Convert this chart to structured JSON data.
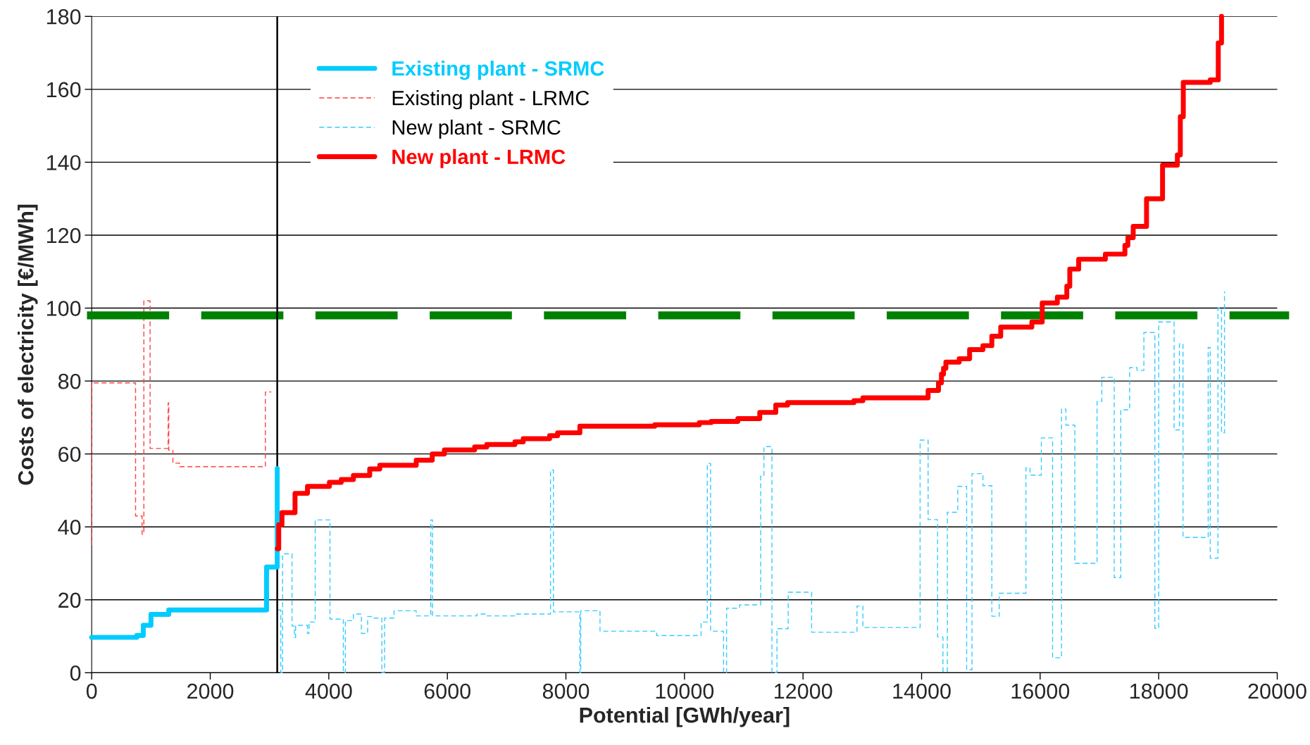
{
  "chart_data": {
    "type": "step",
    "xlabel": "Potential [GWh/year]",
    "ylabel": "Costs of electricity [€/MWh]",
    "xlim": [
      0,
      20000
    ],
    "xticks": [
      0,
      2000,
      4000,
      6000,
      8000,
      10000,
      12000,
      14000,
      16000,
      18000,
      20000
    ],
    "ylim": [
      0,
      180
    ],
    "yticks": [
      0,
      20,
      40,
      60,
      80,
      100,
      120,
      140,
      160,
      180
    ],
    "grid": "y",
    "legend": "top left",
    "marker": "none",
    "ref_lines": [
      {
        "axis": "y",
        "value": 98,
        "label": null,
        "color": "#008000",
        "line_style": "dashed"
      },
      {
        "axis": "x",
        "value": 3130,
        "label": null,
        "color": "#000000",
        "line_style": "solid"
      }
    ],
    "series": [
      {
        "name": "Existing plant - SRMC",
        "color": "#00ccff",
        "line_style": "solid",
        "x": [
          0,
          760,
          870,
          1000,
          1300,
          2950,
          3130,
          3130
        ],
        "values": [
          9.7,
          10.2,
          13,
          16,
          17.2,
          29,
          29,
          56
        ]
      },
      {
        "name": "Existing plant - LRMC",
        "color": "#ff4040",
        "line_style": "dashed",
        "x": [
          0,
          0,
          740,
          850,
          880,
          985,
          1290,
          1300,
          1370,
          1480,
          2930,
          3030
        ],
        "values": [
          35,
          79.5,
          43,
          38,
          102,
          61.5,
          74,
          61,
          57.5,
          56.5,
          77,
          77
        ]
      },
      {
        "name": "New plant - SRMC",
        "color": "#33ccff",
        "line_style": "dashed",
        "x": [
          3140,
          3190,
          3220,
          3380,
          3420,
          3440,
          3640,
          3665,
          3770,
          4020,
          4245,
          4280,
          4415,
          4550,
          4655,
          4760,
          4895,
          4940,
          5100,
          5475,
          5720,
          5750,
          6500,
          6665,
          7140,
          7740,
          7790,
          8235,
          8250,
          8575,
          9530,
          10280,
          10385,
          10440,
          10660,
          10710,
          10930,
          11285,
          11340,
          11475,
          11560,
          11750,
          12145,
          12910,
          13010,
          13975,
          14110,
          14270,
          14360,
          14435,
          14610,
          14760,
          14850,
          15035,
          15185,
          15310,
          15760,
          15830,
          16020,
          16210,
          16360,
          16435,
          16585,
          16960,
          17040,
          17250,
          17360,
          17510,
          17635,
          17750,
          17935,
          18000,
          18260,
          18350,
          18410,
          18835,
          18870,
          19000,
          19060,
          19110
        ],
        "values": [
          17.2,
          0,
          32.6,
          12.8,
          9.7,
          13,
          10.8,
          13.9,
          41.9,
          14.7,
          0,
          14.3,
          16.1,
          10.8,
          15.4,
          15,
          0,
          15,
          17,
          15.6,
          41.9,
          15.6,
          16.1,
          15.6,
          16.1,
          55.6,
          16.7,
          0,
          17,
          11.4,
          10.2,
          13.9,
          57.4,
          11.4,
          0,
          17.7,
          18.6,
          53.9,
          62,
          0,
          12.1,
          22.1,
          11.1,
          18.3,
          12.4,
          63.8,
          42,
          9.8,
          0.4,
          44,
          51.1,
          0.8,
          54.6,
          51.3,
          15.5,
          21.8,
          56.2,
          54.2,
          64.4,
          4.1,
          72.3,
          67.9,
          30,
          74.4,
          81,
          26.1,
          72.1,
          83.7,
          82.9,
          93.3,
          12.2,
          96.2,
          66.6,
          90.2,
          37.1,
          89.2,
          31.4,
          100,
          65.8,
          104.6
        ]
      },
      {
        "name": "New plant - LRMC",
        "color": "#ff0000",
        "line_style": "solid",
        "x": [
          3130,
          3155,
          3210,
          3430,
          3640,
          4010,
          4210,
          4415,
          4690,
          4860,
          5475,
          5745,
          5950,
          6460,
          6665,
          7140,
          7280,
          7725,
          7860,
          8235,
          9500,
          10250,
          10450,
          10900,
          11270,
          11540,
          11740,
          12860,
          13010,
          14110,
          14285,
          14335,
          14370,
          14410,
          14635,
          14810,
          15035,
          15185,
          15335,
          15860,
          16035,
          16290,
          16450,
          16500,
          16650,
          17100,
          17430,
          17480,
          17570,
          17795,
          18065,
          18315,
          18365,
          18415,
          18870,
          19005,
          19060
        ],
        "values": [
          34,
          40.6,
          43.9,
          49.2,
          51.1,
          52.2,
          53,
          54.1,
          55.9,
          56.9,
          58.3,
          60,
          61.1,
          61.9,
          62.6,
          63.3,
          64.2,
          65,
          65.8,
          67.6,
          68,
          68.6,
          68.9,
          69.7,
          71.4,
          73.4,
          74.1,
          74.6,
          75.4,
          77.4,
          79.5,
          81.9,
          83.5,
          85.2,
          86.1,
          88.6,
          89.7,
          92.3,
          94.8,
          96.2,
          101.4,
          103,
          106,
          110.7,
          113.4,
          114.8,
          117.2,
          119.3,
          122.4,
          130,
          139.2,
          142,
          152.5,
          161.9,
          162.6,
          172.7,
          180
        ]
      }
    ]
  }
}
